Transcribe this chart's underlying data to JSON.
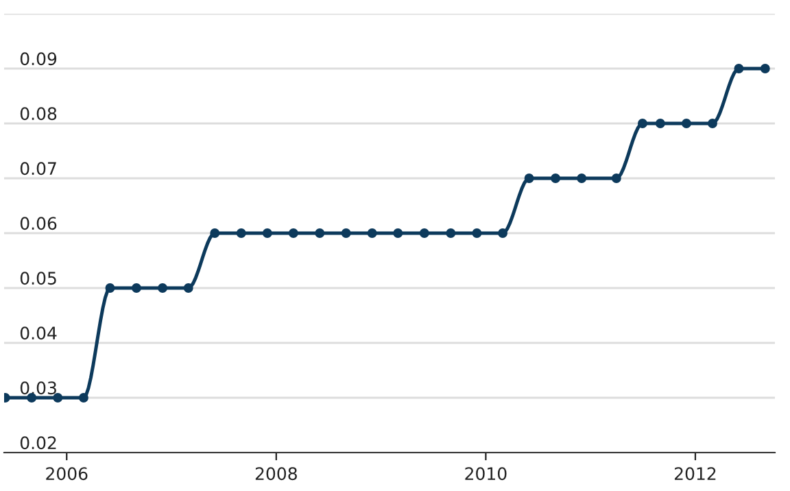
{
  "chart_data": {
    "type": "line",
    "x": [
      "2005-06",
      "2005-09",
      "2005-12",
      "2006-03",
      "2006-06",
      "2006-09",
      "2006-12",
      "2007-03",
      "2007-06",
      "2007-09",
      "2007-12",
      "2008-03",
      "2008-06",
      "2008-09",
      "2008-12",
      "2009-03",
      "2009-06",
      "2009-09",
      "2009-12",
      "2010-03",
      "2010-06",
      "2010-09",
      "2010-12",
      "2011-04",
      "2011-07",
      "2011-09",
      "2011-12",
      "2012-03",
      "2012-06",
      "2012-09"
    ],
    "series": [
      {
        "color": "#0d3a5c",
        "values": [
          0.03,
          0.03,
          0.03,
          0.03,
          0.05,
          0.05,
          0.05,
          0.05,
          0.06,
          0.06,
          0.06,
          0.06,
          0.06,
          0.06,
          0.06,
          0.06,
          0.06,
          0.06,
          0.06,
          0.06,
          0.07,
          0.07,
          0.07,
          0.07,
          0.08,
          0.08,
          0.08,
          0.08,
          0.09,
          0.09
        ]
      }
    ],
    "xlim": [
      "2005-05-28",
      "2012-10-05"
    ],
    "xticks": [
      "2006",
      "2008",
      "2010",
      "2012"
    ],
    "ylim": [
      0.02,
      0.1
    ],
    "yticks": [
      0.02,
      0.03,
      0.04,
      0.05,
      0.06,
      0.07,
      0.08,
      0.09,
      {
        "value": 0.1,
        "label": null
      }
    ],
    "grid": "y",
    "marker": "circle",
    "line_style": "solid",
    "legend": false
  }
}
